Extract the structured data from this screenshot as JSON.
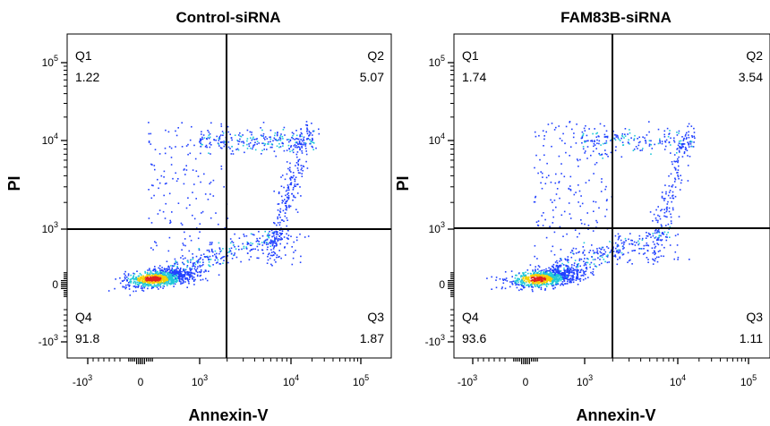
{
  "chart_data": [
    {
      "type": "scatter",
      "title": "Control-siRNA",
      "xlabel": "Annexin-V",
      "ylabel": "PI",
      "x_ticks": [
        "-10^3",
        "0",
        "10^3",
        "10^4",
        "10^5"
      ],
      "y_ticks": [
        "-10^3",
        "0",
        "10^3",
        "10^4",
        "10^5"
      ],
      "quadrants": [
        {
          "name": "Q1",
          "value": "1.22"
        },
        {
          "name": "Q2",
          "value": "5.07"
        },
        {
          "name": "Q3",
          "value": "1.87"
        },
        {
          "name": "Q4",
          "value": "91.8"
        }
      ],
      "gate": {
        "x": 2000,
        "y": 1000
      },
      "populations": {
        "live": 91.8,
        "early_apoptotic": 1.87,
        "late_apoptotic": 5.07,
        "necrotic": 1.22
      },
      "colors": {
        "dense_core": "#e02020",
        "core": "#f5d000",
        "mid": "#20c8d8",
        "sparse": "#2040ff"
      }
    },
    {
      "type": "scatter",
      "title": "FAM83B-siRNA",
      "xlabel": "Annexin-V",
      "ylabel": "PI",
      "x_ticks": [
        "-10^3",
        "0",
        "10^3",
        "10^4",
        "10^5"
      ],
      "y_ticks": [
        "-10^3",
        "0",
        "10^3",
        "10^4",
        "10^5"
      ],
      "quadrants": [
        {
          "name": "Q1",
          "value": "1.74"
        },
        {
          "name": "Q2",
          "value": "3.54"
        },
        {
          "name": "Q3",
          "value": "1.11"
        },
        {
          "name": "Q4",
          "value": "93.6"
        }
      ],
      "gate": {
        "x": 2000,
        "y": 1000
      },
      "populations": {
        "live": 93.6,
        "early_apoptotic": 1.11,
        "late_apoptotic": 3.54,
        "necrotic": 1.74
      },
      "colors": {
        "dense_core": "#e02020",
        "core": "#f5d000",
        "mid": "#20c8d8",
        "sparse": "#2040ff"
      }
    }
  ]
}
